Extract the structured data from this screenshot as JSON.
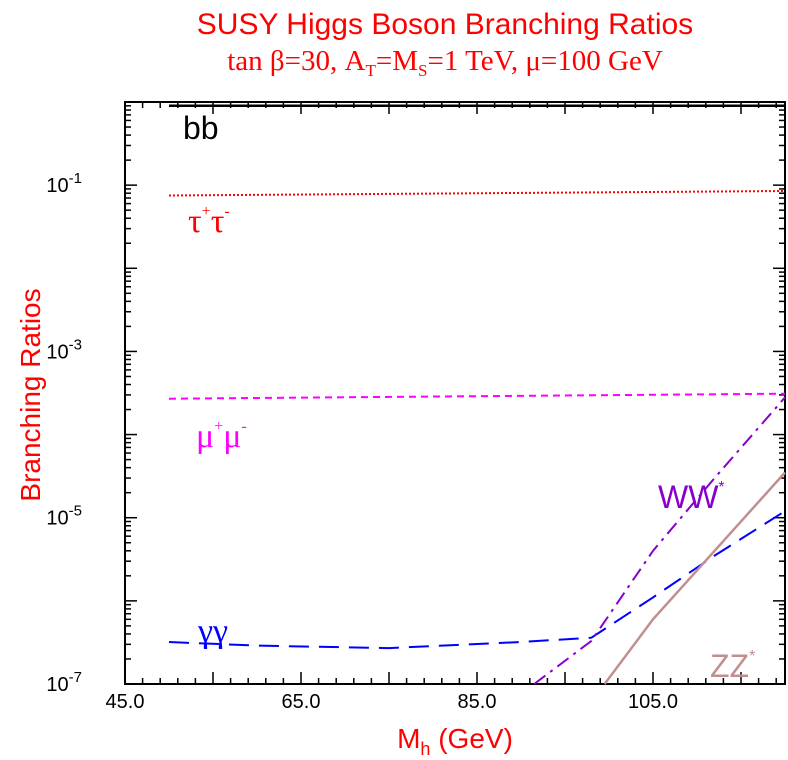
{
  "chart_data": {
    "type": "line",
    "title": "SUSY Higgs Boson Branching Ratios",
    "subtitle": {
      "prefix": "tan ",
      "beta": "β",
      "after_beta": "=30, A",
      "sub_t": "T",
      "after_t": "=M",
      "sub_s": "S",
      "after_s": "=1 TeV, ",
      "mu": "μ",
      "after_mu": "=100 GeV"
    },
    "xlabel": {
      "main": "M",
      "sub": "h",
      "rest": " (GeV)"
    },
    "ylabel": "Branching Ratios",
    "xlim": [
      45,
      120
    ],
    "ylim": [
      1e-07,
      1
    ],
    "yscale": "log",
    "x_ticks": [
      "45.0",
      "65.0",
      "85.0",
      "105.0"
    ],
    "x_tick_values": [
      45,
      65,
      85,
      105
    ],
    "y_ticks": [
      {
        "base": "10",
        "exp": "-1",
        "value": 0.1
      },
      {
        "base": "10",
        "exp": "-3",
        "value": 0.001
      },
      {
        "base": "10",
        "exp": "-5",
        "value": 1e-05
      },
      {
        "base": "10",
        "exp": "-7",
        "value": 1e-07
      }
    ],
    "series": [
      {
        "name": "bb",
        "label": {
          "text": "bb",
          "sup1": "",
          "sup2": ""
        },
        "color": "#000000",
        "dash": "solid",
        "x": [
          50,
          120
        ],
        "y": [
          0.9,
          0.9
        ]
      },
      {
        "name": "τ+τ-",
        "label": {
          "text": "τ",
          "sup1": "+",
          "mid": "τ",
          "sup2": "-"
        },
        "color": "#ff0000",
        "dash": "dotted",
        "x": [
          50,
          120
        ],
        "y": [
          0.075,
          0.085
        ]
      },
      {
        "name": "μ+μ-",
        "label": {
          "text": "μ",
          "sup1": "+",
          "mid": "μ",
          "sup2": "-"
        },
        "color": "#ff00ff",
        "dash": "dashed",
        "x": [
          50,
          120
        ],
        "y": [
          0.00027,
          0.00031
        ]
      },
      {
        "name": "γγ",
        "label": {
          "text": "γγ",
          "sup1": "",
          "sup2": ""
        },
        "color": "#0000ff",
        "dash": "longdash",
        "x": [
          50,
          60,
          75,
          90,
          98,
          105,
          112,
          120
        ],
        "y": [
          3.2e-07,
          2.9e-07,
          2.7e-07,
          3.2e-07,
          3.6e-07,
          1.1e-06,
          3.5e-06,
          1.2e-05
        ]
      },
      {
        "name": "WW*",
        "label": {
          "text": "WW",
          "sup1": "*",
          "sup2": ""
        },
        "color": "#8800cc",
        "dash": "dashdot",
        "x": [
          91.5,
          98,
          105,
          112,
          120
        ],
        "y": [
          1e-07,
          3.3e-07,
          4e-06,
          3e-05,
          0.00028
        ]
      },
      {
        "name": "ZZ*",
        "label": {
          "text": "ZZ",
          "sup1": "*",
          "sup2": ""
        },
        "color": "#c09090",
        "dash": "solid",
        "x": [
          99.5,
          105,
          112,
          120
        ],
        "y": [
          1e-07,
          6e-07,
          4e-06,
          3.5e-05
        ]
      }
    ]
  }
}
